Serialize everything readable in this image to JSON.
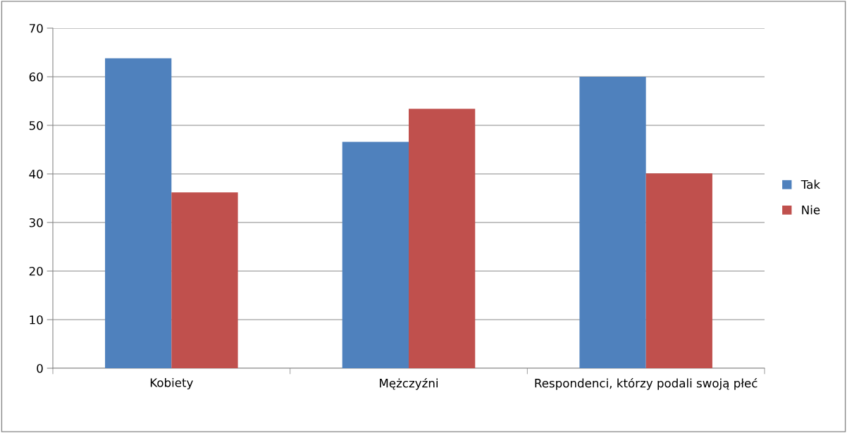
{
  "chart_data": {
    "type": "bar",
    "categories": [
      "Kobiety",
      "Mężczyźni",
      "Respondenci, którzy podali swoją płeć"
    ],
    "series": [
      {
        "name": "Tak",
        "color": "#4f81bd",
        "values": [
          63.8,
          46.6,
          60.0
        ]
      },
      {
        "name": "Nie",
        "color": "#c0504d",
        "values": [
          36.2,
          53.4,
          40.1
        ]
      }
    ],
    "ylim": [
      0,
      70
    ],
    "yticks": [
      0,
      10,
      20,
      30,
      40,
      50,
      60,
      70
    ],
    "grid": "y",
    "legend": "right"
  }
}
